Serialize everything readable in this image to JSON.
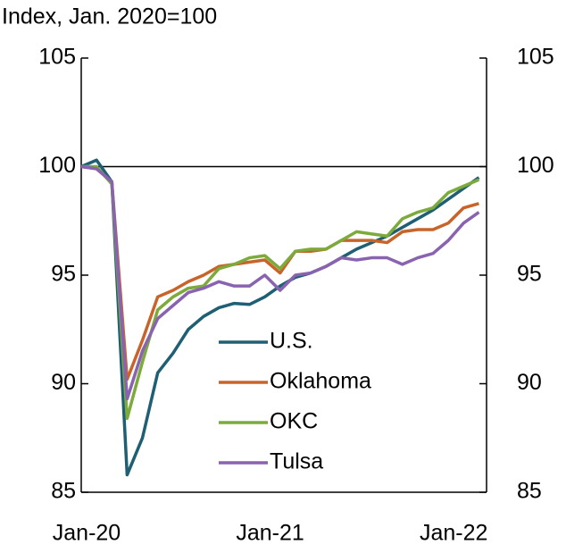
{
  "chart_data": {
    "type": "line",
    "title": "Index, Jan. 2020=100",
    "categories": [
      "Jan-20",
      null,
      null,
      null,
      null,
      null,
      null,
      null,
      null,
      null,
      null,
      null,
      "Jan-21",
      null,
      null,
      null,
      null,
      null,
      null,
      null,
      null,
      null,
      null,
      null,
      "Jan-22",
      null,
      null
    ],
    "series": [
      {
        "name": "U.S.",
        "color": "#1f5f73",
        "values": [
          100,
          100.3,
          99.3,
          85.8,
          87.5,
          90.5,
          91.4,
          92.5,
          93.1,
          93.5,
          93.7,
          93.65,
          94.0,
          94.5,
          94.9,
          95.1,
          95.4,
          95.8,
          96.2,
          96.5,
          96.8,
          97.2,
          97.6,
          98.0,
          98.5,
          99.0,
          99.5
        ]
      },
      {
        "name": "Oklahoma",
        "color": "#c8642a",
        "values": [
          100,
          99.9,
          99.3,
          90.2,
          92.0,
          94.0,
          94.3,
          94.7,
          95.0,
          95.4,
          95.5,
          95.6,
          95.7,
          95.1,
          96.1,
          96.1,
          96.2,
          96.6,
          96.6,
          96.6,
          96.5,
          97.0,
          97.1,
          97.1,
          97.4,
          98.1,
          98.3
        ]
      },
      {
        "name": "OKC",
        "color": "#7cab3c",
        "values": [
          100,
          100,
          99.2,
          88.4,
          91.0,
          93.4,
          94.0,
          94.4,
          94.5,
          95.3,
          95.5,
          95.8,
          95.9,
          95.3,
          96.1,
          96.2,
          96.2,
          96.6,
          97.0,
          96.9,
          96.8,
          97.6,
          97.9,
          98.1,
          98.8,
          99.1,
          99.4
        ]
      },
      {
        "name": "Tulsa",
        "color": "#8a63b0",
        "values": [
          100,
          99.9,
          99.3,
          89.3,
          91.5,
          93.0,
          93.6,
          94.2,
          94.4,
          94.7,
          94.5,
          94.5,
          95.0,
          94.3,
          95.0,
          95.1,
          95.4,
          95.8,
          95.7,
          95.8,
          95.8,
          95.5,
          95.8,
          96.0,
          96.6,
          97.4,
          97.9
        ]
      }
    ],
    "ylim": [
      85,
      105
    ],
    "yticks": [
      85,
      90,
      95,
      100,
      105
    ],
    "y2lim": [
      85,
      105
    ],
    "y2ticks": [
      85,
      90,
      95,
      100,
      105
    ],
    "reference_line": 100
  }
}
